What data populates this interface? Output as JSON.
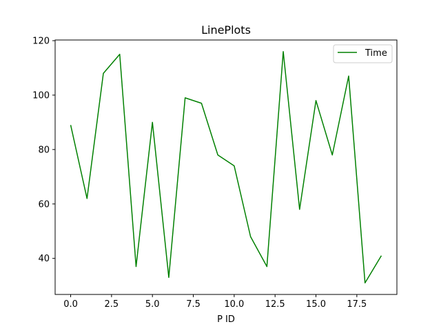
{
  "chart_data": {
    "type": "line",
    "title": "LinePlots",
    "xlabel": "P ID",
    "ylabel": "",
    "x": [
      0,
      1,
      2,
      3,
      4,
      5,
      6,
      7,
      8,
      9,
      10,
      11,
      12,
      13,
      14,
      15,
      16,
      17,
      18,
      19
    ],
    "series": [
      {
        "name": "Time",
        "color": "#008000",
        "values": [
          89,
          62,
          108,
          115,
          37,
          90,
          33,
          99,
          97,
          78,
          74,
          48,
          37,
          116,
          58,
          98,
          78,
          107,
          31,
          41
        ]
      }
    ],
    "xlim": [
      -0.95,
      19.95
    ],
    "ylim": [
      26.75,
      120.25
    ],
    "x_ticks": [
      0,
      2.5,
      5,
      7.5,
      10,
      12.5,
      15,
      17.5
    ],
    "x_tick_labels": [
      "0.0",
      "2.5",
      "5.0",
      "7.5",
      "10.0",
      "12.5",
      "15.0",
      "17.5"
    ],
    "y_ticks": [
      40,
      60,
      80,
      100,
      120
    ],
    "y_tick_labels": [
      "40",
      "60",
      "80",
      "100",
      "120"
    ],
    "grid": false,
    "legend_position": "upper right"
  }
}
